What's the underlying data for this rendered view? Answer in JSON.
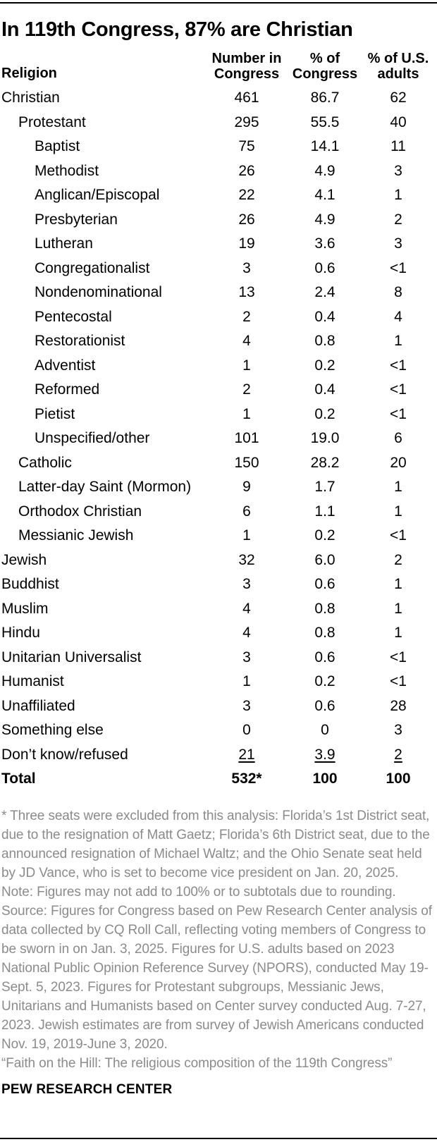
{
  "colors": {
    "text_black": "#000000",
    "note_gray": "#8b8b8b",
    "rule_black": "#000000",
    "background": "#ffffff"
  },
  "chart_data": {
    "type": "table",
    "title": "In 119th Congress, 87% are Christian",
    "columns": [
      "Religion",
      "Number in Congress",
      "% of Congress",
      "% of U.S. adults"
    ],
    "religion_header": "Religion",
    "column_header_lines": [
      [
        "Number in",
        "Congress"
      ],
      [
        "% of",
        "Congress"
      ],
      [
        "% of U.S.",
        "adults"
      ]
    ],
    "rows": [
      {
        "label": "Christian",
        "indent": 0,
        "number_in_congress": "461",
        "pct_of_congress": "86.7",
        "pct_of_us_adults": "62",
        "style": "normal"
      },
      {
        "label": "Protestant",
        "indent": 1,
        "number_in_congress": "295",
        "pct_of_congress": "55.5",
        "pct_of_us_adults": "40",
        "style": "normal"
      },
      {
        "label": "Baptist",
        "indent": 2,
        "number_in_congress": "75",
        "pct_of_congress": "14.1",
        "pct_of_us_adults": "11",
        "style": "normal"
      },
      {
        "label": "Methodist",
        "indent": 2,
        "number_in_congress": "26",
        "pct_of_congress": "4.9",
        "pct_of_us_adults": "3",
        "style": "normal"
      },
      {
        "label": "Anglican/Episcopal",
        "indent": 2,
        "number_in_congress": "22",
        "pct_of_congress": "4.1",
        "pct_of_us_adults": "1",
        "style": "normal"
      },
      {
        "label": "Presbyterian",
        "indent": 2,
        "number_in_congress": "26",
        "pct_of_congress": "4.9",
        "pct_of_us_adults": "2",
        "style": "normal"
      },
      {
        "label": "Lutheran",
        "indent": 2,
        "number_in_congress": "19",
        "pct_of_congress": "3.6",
        "pct_of_us_adults": "3",
        "style": "normal"
      },
      {
        "label": "Congregationalist",
        "indent": 2,
        "number_in_congress": "3",
        "pct_of_congress": "0.6",
        "pct_of_us_adults": "<1",
        "style": "normal"
      },
      {
        "label": "Nondenominational",
        "indent": 2,
        "number_in_congress": "13",
        "pct_of_congress": "2.4",
        "pct_of_us_adults": "8",
        "style": "normal"
      },
      {
        "label": "Pentecostal",
        "indent": 2,
        "number_in_congress": "2",
        "pct_of_congress": "0.4",
        "pct_of_us_adults": "4",
        "style": "normal"
      },
      {
        "label": "Restorationist",
        "indent": 2,
        "number_in_congress": "4",
        "pct_of_congress": "0.8",
        "pct_of_us_adults": "1",
        "style": "normal"
      },
      {
        "label": "Adventist",
        "indent": 2,
        "number_in_congress": "1",
        "pct_of_congress": "0.2",
        "pct_of_us_adults": "<1",
        "style": "normal"
      },
      {
        "label": "Reformed",
        "indent": 2,
        "number_in_congress": "2",
        "pct_of_congress": "0.4",
        "pct_of_us_adults": "<1",
        "style": "normal"
      },
      {
        "label": "Pietist",
        "indent": 2,
        "number_in_congress": "1",
        "pct_of_congress": "0.2",
        "pct_of_us_adults": "<1",
        "style": "normal"
      },
      {
        "label": "Unspecified/other",
        "indent": 2,
        "number_in_congress": "101",
        "pct_of_congress": "19.0",
        "pct_of_us_adults": "6",
        "style": "normal"
      },
      {
        "label": "Catholic",
        "indent": 1,
        "number_in_congress": "150",
        "pct_of_congress": "28.2",
        "pct_of_us_adults": "20",
        "style": "normal"
      },
      {
        "label": "Latter-day Saint (Mormon)",
        "indent": 1,
        "number_in_congress": "9",
        "pct_of_congress": "1.7",
        "pct_of_us_adults": "1",
        "style": "normal"
      },
      {
        "label": "Orthodox Christian",
        "indent": 1,
        "number_in_congress": "6",
        "pct_of_congress": "1.1",
        "pct_of_us_adults": "1",
        "style": "normal"
      },
      {
        "label": "Messianic Jewish",
        "indent": 1,
        "number_in_congress": "1",
        "pct_of_congress": "0.2",
        "pct_of_us_adults": "<1",
        "style": "normal"
      },
      {
        "label": "Jewish",
        "indent": 0,
        "number_in_congress": "32",
        "pct_of_congress": "6.0",
        "pct_of_us_adults": "2",
        "style": "normal"
      },
      {
        "label": "Buddhist",
        "indent": 0,
        "number_in_congress": "3",
        "pct_of_congress": "0.6",
        "pct_of_us_adults": "1",
        "style": "normal"
      },
      {
        "label": "Muslim",
        "indent": 0,
        "number_in_congress": "4",
        "pct_of_congress": "0.8",
        "pct_of_us_adults": "1",
        "style": "normal"
      },
      {
        "label": "Hindu",
        "indent": 0,
        "number_in_congress": "4",
        "pct_of_congress": "0.8",
        "pct_of_us_adults": "1",
        "style": "normal"
      },
      {
        "label": "Unitarian Universalist",
        "indent": 0,
        "number_in_congress": "3",
        "pct_of_congress": "0.6",
        "pct_of_us_adults": "<1",
        "style": "normal"
      },
      {
        "label": "Humanist",
        "indent": 0,
        "number_in_congress": "1",
        "pct_of_congress": "0.2",
        "pct_of_us_adults": "<1",
        "style": "normal"
      },
      {
        "label": "Unaffiliated",
        "indent": 0,
        "number_in_congress": "3",
        "pct_of_congress": "0.6",
        "pct_of_us_adults": "28",
        "style": "normal"
      },
      {
        "label": "Something else",
        "indent": 0,
        "number_in_congress": "0",
        "pct_of_congress": "0",
        "pct_of_us_adults": "3",
        "style": "normal"
      },
      {
        "label": "Don’t know/refused",
        "indent": 0,
        "number_in_congress": "21",
        "pct_of_congress": "3.9",
        "pct_of_us_adults": "2",
        "style": "underline"
      },
      {
        "label": "Total",
        "indent": 0,
        "number_in_congress": "532*",
        "pct_of_congress": "100",
        "pct_of_us_adults": "100",
        "style": "total"
      }
    ]
  },
  "notes": {
    "asterisk": "* Three seats were excluded from this analysis: Florida’s 1st District seat, due to the resignation of Matt Gaetz; Florida’s 6th District seat, due to the announced resignation of Michael Waltz; and the Ohio Senate seat held by JD Vance, who is set to become vice president on Jan. 20, 2025.",
    "note": "Note: Figures may not add to 100% or to subtotals due to rounding.",
    "source": "Source: Figures for Congress based on Pew Research Center analysis of data collected by CQ Roll Call, reflecting voting members of Congress to be sworn in on Jan. 3, 2025. Figures for U.S. adults based on 2023 National Public Opinion Reference Survey (NPORS), conducted May 19-Sept. 5, 2023. Figures for Protestant subgroups, Messianic Jews, Unitarians and Humanists based on Center survey conducted Aug. 7-27, 2023. Jewish estimates are from survey of Jewish Americans conducted Nov. 19, 2019-June 3, 2020.",
    "quote": "“Faith on the Hill: The religious composition of the 119th Congress”"
  },
  "footer": {
    "brand": "PEW RESEARCH CENTER"
  }
}
